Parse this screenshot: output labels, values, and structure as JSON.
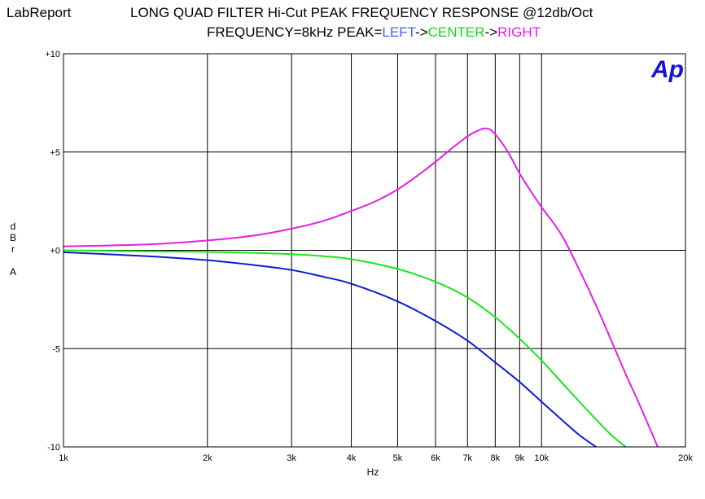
{
  "header": {
    "brand": "LabReport",
    "title": "LONG QUAD FILTER Hi-Cut PEAK FREQUENCY RESPONSE @12db/Oct",
    "subtitle_prefix": "FREQUENCY=8kHz PEAK=",
    "subtitle_left": "LEFT",
    "subtitle_arrow1": "->",
    "subtitle_center": "CENTER",
    "subtitle_arrow2": "->",
    "subtitle_right": "RIGHT",
    "logo_text": "Ap"
  },
  "chart_data": {
    "type": "line",
    "title": "LONG QUAD FILTER Hi-Cut PEAK FREQUENCY RESPONSE @12db/Oct",
    "xlabel": "Hz",
    "ylabel": [
      "d",
      "B",
      "r",
      "",
      "A"
    ],
    "x_scale": "log",
    "xlim": [
      1000,
      20000
    ],
    "ylim": [
      -10,
      10
    ],
    "grid": true,
    "x_ticks": [
      {
        "value": 1000,
        "label": "1k"
      },
      {
        "value": 2000,
        "label": "2k"
      },
      {
        "value": 3000,
        "label": "3k"
      },
      {
        "value": 4000,
        "label": "4k"
      },
      {
        "value": 5000,
        "label": "5k"
      },
      {
        "value": 6000,
        "label": "6k"
      },
      {
        "value": 7000,
        "label": "7k"
      },
      {
        "value": 8000,
        "label": "8k"
      },
      {
        "value": 9000,
        "label": "9k"
      },
      {
        "value": 10000,
        "label": "10k"
      },
      {
        "value": 20000,
        "label": "20k"
      }
    ],
    "y_ticks": [
      {
        "value": 10,
        "label": "+10"
      },
      {
        "value": 5,
        "label": "+5"
      },
      {
        "value": 0,
        "label": "+0"
      },
      {
        "value": -5,
        "label": "-5"
      },
      {
        "value": -10,
        "label": "-10"
      }
    ],
    "series": [
      {
        "name": "LEFT",
        "color": "#0a1ed2",
        "x": [
          1000,
          1500,
          2000,
          2500,
          3000,
          3500,
          4000,
          5000,
          6000,
          7000,
          8000,
          9000,
          10000,
          11000,
          12000,
          13000
        ],
        "y": [
          -0.1,
          -0.3,
          -0.5,
          -0.75,
          -1.0,
          -1.35,
          -1.7,
          -2.6,
          -3.6,
          -4.6,
          -5.7,
          -6.7,
          -7.7,
          -8.6,
          -9.4,
          -10.0
        ]
      },
      {
        "name": "CENTER",
        "color": "#19e619",
        "x": [
          1000,
          1500,
          2000,
          2500,
          3000,
          3500,
          4000,
          5000,
          6000,
          7000,
          8000,
          9000,
          10000,
          11000,
          12000,
          13000,
          14000,
          15000
        ],
        "y": [
          0.0,
          -0.05,
          -0.08,
          -0.13,
          -0.2,
          -0.3,
          -0.45,
          -0.95,
          -1.6,
          -2.4,
          -3.4,
          -4.5,
          -5.6,
          -6.7,
          -7.7,
          -8.6,
          -9.4,
          -10.0
        ]
      },
      {
        "name": "RIGHT",
        "color": "#e61ee6",
        "x": [
          1000,
          1500,
          2000,
          2500,
          3000,
          3500,
          4000,
          4500,
          5000,
          5500,
          6000,
          6500,
          7000,
          7300,
          7600,
          7800,
          8000,
          8300,
          8600,
          9000,
          9500,
          10000,
          11000,
          12000,
          13000,
          14000,
          15000,
          16000,
          17500
        ],
        "y": [
          0.2,
          0.3,
          0.5,
          0.75,
          1.1,
          1.5,
          2.0,
          2.5,
          3.1,
          3.8,
          4.5,
          5.2,
          5.8,
          6.05,
          6.2,
          6.15,
          5.9,
          5.4,
          4.8,
          3.9,
          3.0,
          2.2,
          0.8,
          -1.0,
          -2.8,
          -4.6,
          -6.3,
          -7.8,
          -10.0
        ]
      }
    ]
  }
}
